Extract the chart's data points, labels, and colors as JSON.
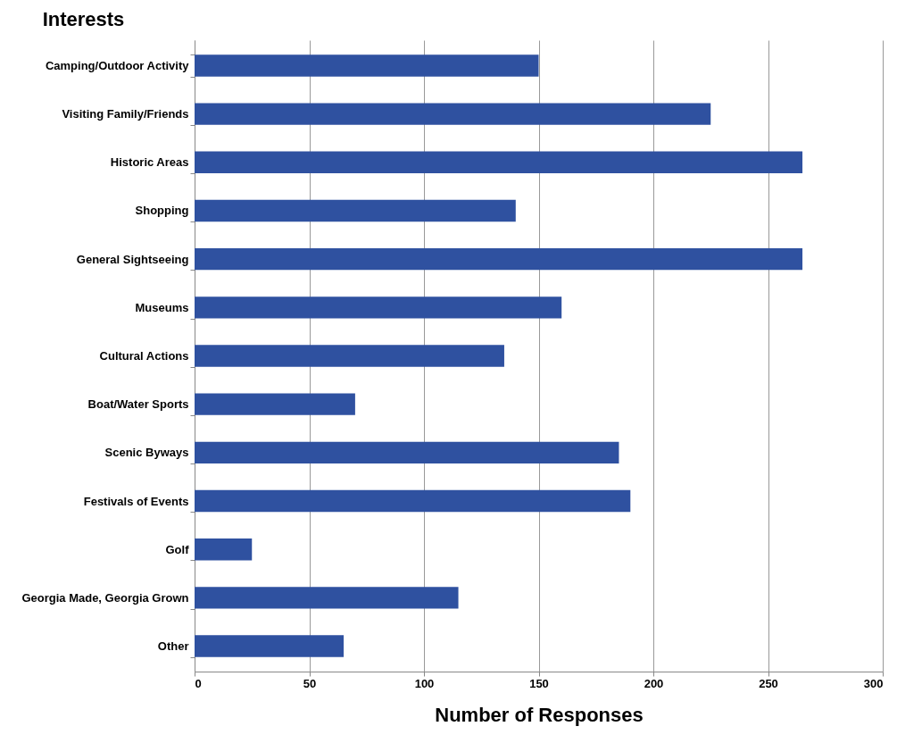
{
  "chart_data": {
    "type": "bar",
    "orientation": "horizontal",
    "ylabel": "Interests",
    "xlabel": "Number of Responses",
    "categories": [
      "Camping/Outdoor Activity",
      "Visiting Family/Friends",
      "Historic Areas",
      "Shopping",
      "General Sightseeing",
      "Museums",
      "Cultural Actions",
      "Boat/Water Sports",
      "Scenic Byways",
      "Festivals of Events",
      "Golf",
      "Georgia Made, Georgia Grown",
      "Other"
    ],
    "values": [
      150,
      225,
      265,
      140,
      265,
      160,
      135,
      70,
      185,
      190,
      25,
      115,
      65
    ],
    "color": "#2f51a0",
    "xlim": [
      0,
      300
    ],
    "xticks": [
      0,
      50,
      100,
      150,
      200,
      250,
      300
    ],
    "grid": "x"
  }
}
